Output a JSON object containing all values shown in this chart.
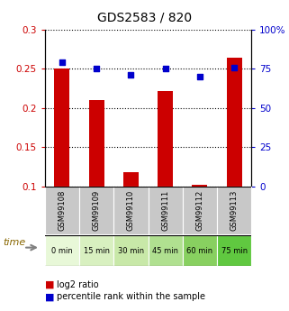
{
  "title": "GDS2583 / 820",
  "categories": [
    "GSM99108",
    "GSM99109",
    "GSM99110",
    "GSM99111",
    "GSM99112",
    "GSM99113"
  ],
  "time_labels": [
    "0 min",
    "15 min",
    "30 min",
    "45 min",
    "60 min",
    "75 min"
  ],
  "log2_values": [
    0.25,
    0.21,
    0.118,
    0.222,
    0.102,
    0.264
  ],
  "percentile_values": [
    79,
    75,
    71,
    75,
    70,
    76
  ],
  "bar_color": "#cc0000",
  "dot_color": "#0000cc",
  "ylim_left": [
    0.1,
    0.3
  ],
  "ylim_right": [
    0,
    100
  ],
  "yticks_left": [
    0.1,
    0.15,
    0.2,
    0.25,
    0.3
  ],
  "ytick_labels_left": [
    "0.1",
    "0.15",
    "0.2",
    "0.25",
    "0.3"
  ],
  "yticks_right": [
    0,
    25,
    50,
    75,
    100
  ],
  "ytick_labels_right": [
    "0",
    "25",
    "50",
    "75",
    "100%"
  ],
  "time_colors": [
    "#e8f8d8",
    "#d8f0c0",
    "#c8e8a8",
    "#b0e090",
    "#88d060",
    "#60c840"
  ],
  "legend_log2": "log2 ratio",
  "legend_percentile": "percentile rank within the sample",
  "gsm_bg": "#c8c8c8",
  "time_text_color": "#000000",
  "title_fontsize": 10,
  "bar_width": 0.45
}
